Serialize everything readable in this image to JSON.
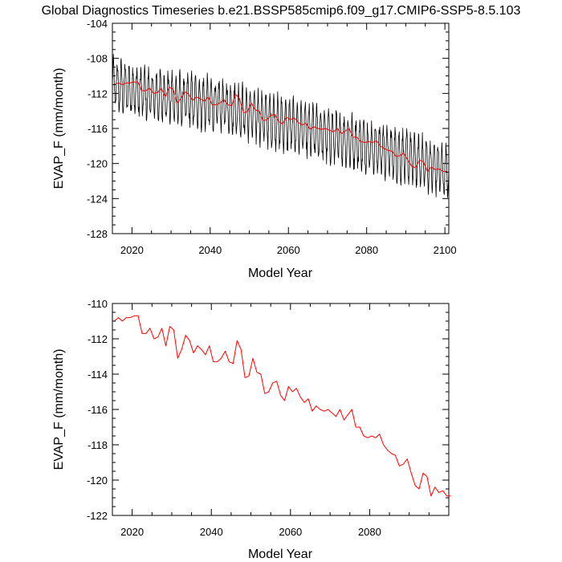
{
  "title": "Global Diagnostics Timeseries b.e21.BSSP585cmip6.f09_g17.CMIP6-SSP5-8.5.103",
  "colors": {
    "monthly": "#000000",
    "annual": "#ff0000",
    "axis": "#000000"
  },
  "chart_data": [
    {
      "type": "line",
      "xlabel": "Model Year",
      "ylabel": "EVAP_F (mm/month)",
      "xlim": [
        2015,
        2101
      ],
      "ylim": [
        -128,
        -104
      ],
      "xticks": [
        2020,
        2040,
        2060,
        2080,
        2100
      ],
      "yticks": [
        -128,
        -124,
        -120,
        -116,
        -112,
        -108,
        -104
      ],
      "grid": false,
      "series": [
        {
          "kind": "monthly",
          "seasonal_amplitude": 2.6,
          "noise": 0.9,
          "anchors_x": [
            2015,
            2025,
            2035,
            2045,
            2055,
            2065,
            2075,
            2085,
            2095,
            2101
          ],
          "anchors_y": [
            -111.0,
            -112.2,
            -112.8,
            -113.6,
            -115.0,
            -116.2,
            -117.4,
            -118.6,
            -120.0,
            -121.0
          ]
        },
        {
          "kind": "annual",
          "x": [
            2015,
            2016,
            2017,
            2018,
            2019,
            2020,
            2021,
            2022,
            2023,
            2024,
            2025,
            2026,
            2027,
            2028,
            2029,
            2030,
            2031,
            2032,
            2033,
            2034,
            2035,
            2036,
            2037,
            2038,
            2039,
            2040,
            2041,
            2042,
            2043,
            2044,
            2045,
            2046,
            2047,
            2048,
            2049,
            2050,
            2051,
            2052,
            2053,
            2054,
            2055,
            2056,
            2057,
            2058,
            2059,
            2060,
            2061,
            2062,
            2063,
            2064,
            2065,
            2066,
            2067,
            2068,
            2069,
            2070,
            2071,
            2072,
            2073,
            2074,
            2075,
            2076,
            2077,
            2078,
            2079,
            2080,
            2081,
            2082,
            2083,
            2084,
            2085,
            2086,
            2087,
            2088,
            2089,
            2090,
            2091,
            2092,
            2093,
            2094,
            2095,
            2096,
            2097,
            2098,
            2099,
            2100
          ],
          "y": [
            -111.0,
            -110.8,
            -111.0,
            -110.8,
            -110.8,
            -110.7,
            -110.7,
            -111.7,
            -111.7,
            -111.4,
            -112.0,
            -111.9,
            -111.4,
            -112.4,
            -111.3,
            -111.5,
            -113.1,
            -112.6,
            -111.8,
            -112.1,
            -112.8,
            -112.4,
            -112.6,
            -112.9,
            -112.4,
            -113.3,
            -113.3,
            -113.1,
            -112.7,
            -113.3,
            -113.4,
            -112.1,
            -112.6,
            -114.2,
            -114.1,
            -113.1,
            -113.9,
            -114.0,
            -115.1,
            -115.0,
            -114.5,
            -114.4,
            -115.2,
            -115.5,
            -114.7,
            -115.0,
            -114.8,
            -115.3,
            -115.6,
            -115.4,
            -116.1,
            -115.8,
            -116.0,
            -116.1,
            -116.0,
            -116.2,
            -116.4,
            -116.0,
            -116.6,
            -116.3,
            -116.0,
            -117.0,
            -117.0,
            -117.5,
            -117.6,
            -117.5,
            -117.6,
            -117.4,
            -118.0,
            -118.3,
            -118.5,
            -118.6,
            -119.2,
            -119.1,
            -118.8,
            -119.6,
            -120.3,
            -120.5,
            -119.6,
            -119.8,
            -120.9,
            -120.4,
            -120.7,
            -120.6,
            -120.9,
            -120.9
          ]
        }
      ]
    },
    {
      "type": "line",
      "xlabel": "Model Year",
      "ylabel": "EVAP_F (mm/month)",
      "xlim": [
        2015,
        2100
      ],
      "ylim": [
        -122,
        -110
      ],
      "xticks": [
        2020,
        2040,
        2060,
        2080
      ],
      "yticks": [
        -122,
        -120,
        -118,
        -116,
        -114,
        -112,
        -110
      ],
      "grid": false,
      "series": [
        {
          "kind": "annual",
          "x": [
            2015,
            2016,
            2017,
            2018,
            2019,
            2020,
            2021,
            2022,
            2023,
            2024,
            2025,
            2026,
            2027,
            2028,
            2029,
            2030,
            2031,
            2032,
            2033,
            2034,
            2035,
            2036,
            2037,
            2038,
            2039,
            2040,
            2041,
            2042,
            2043,
            2044,
            2045,
            2046,
            2047,
            2048,
            2049,
            2050,
            2051,
            2052,
            2053,
            2054,
            2055,
            2056,
            2057,
            2058,
            2059,
            2060,
            2061,
            2062,
            2063,
            2064,
            2065,
            2066,
            2067,
            2068,
            2069,
            2070,
            2071,
            2072,
            2073,
            2074,
            2075,
            2076,
            2077,
            2078,
            2079,
            2080,
            2081,
            2082,
            2083,
            2084,
            2085,
            2086,
            2087,
            2088,
            2089,
            2090,
            2091,
            2092,
            2093,
            2094,
            2095,
            2096,
            2097,
            2098,
            2099,
            2100
          ],
          "y": [
            -111.0,
            -110.8,
            -111.0,
            -110.8,
            -110.8,
            -110.7,
            -110.7,
            -111.7,
            -111.7,
            -111.4,
            -112.0,
            -111.9,
            -111.4,
            -112.4,
            -111.3,
            -111.5,
            -113.1,
            -112.6,
            -111.8,
            -112.1,
            -112.8,
            -112.4,
            -112.6,
            -112.9,
            -112.4,
            -113.3,
            -113.3,
            -113.1,
            -112.7,
            -113.3,
            -113.4,
            -112.1,
            -112.6,
            -114.2,
            -114.1,
            -113.1,
            -113.9,
            -114.0,
            -115.1,
            -115.0,
            -114.5,
            -114.4,
            -115.2,
            -115.5,
            -114.7,
            -115.0,
            -114.8,
            -115.3,
            -115.6,
            -115.4,
            -116.1,
            -115.8,
            -116.0,
            -116.1,
            -116.0,
            -116.2,
            -116.4,
            -116.0,
            -116.6,
            -116.3,
            -116.0,
            -117.0,
            -117.0,
            -117.5,
            -117.6,
            -117.5,
            -117.6,
            -117.4,
            -118.0,
            -118.3,
            -118.5,
            -118.6,
            -119.2,
            -119.1,
            -118.8,
            -119.6,
            -120.3,
            -120.5,
            -119.6,
            -119.8,
            -120.9,
            -120.4,
            -120.7,
            -120.6,
            -120.9,
            -120.9
          ]
        }
      ]
    }
  ]
}
